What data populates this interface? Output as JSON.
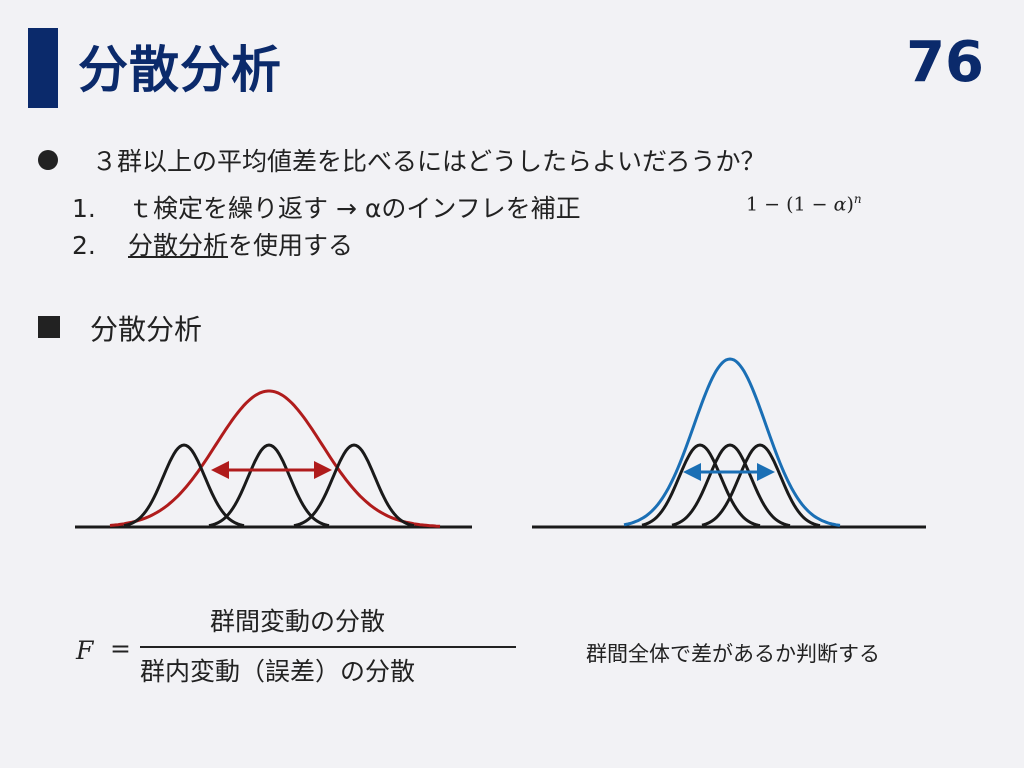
{
  "header": {
    "title": "分散分析",
    "page_number": "76"
  },
  "question": "３群以上の平均値差を比べるにはどうしたらよいだろうか？",
  "options": [
    {
      "number": "1.",
      "text": "ｔ検定を繰り返す → αのインフレを補正"
    },
    {
      "number": "2.",
      "text_underlined": "分散分析",
      "text_rest": "を使用する"
    }
  ],
  "formula": {
    "prefix": "1 − (1 − ",
    "alpha": "α",
    "suffix": ")",
    "exponent": "n"
  },
  "section": {
    "heading": "分散分析"
  },
  "figure": {
    "colors": {
      "red": "#b01c1c",
      "blue": "#1a6fb5",
      "black": "#1a1a1a"
    }
  },
  "f_ratio": {
    "lhs": "F",
    "equals": "=",
    "numerator": "群間変動の分散",
    "denominator": "群内変動（誤差）の分散"
  },
  "note": "群間全体で差があるか判断する"
}
